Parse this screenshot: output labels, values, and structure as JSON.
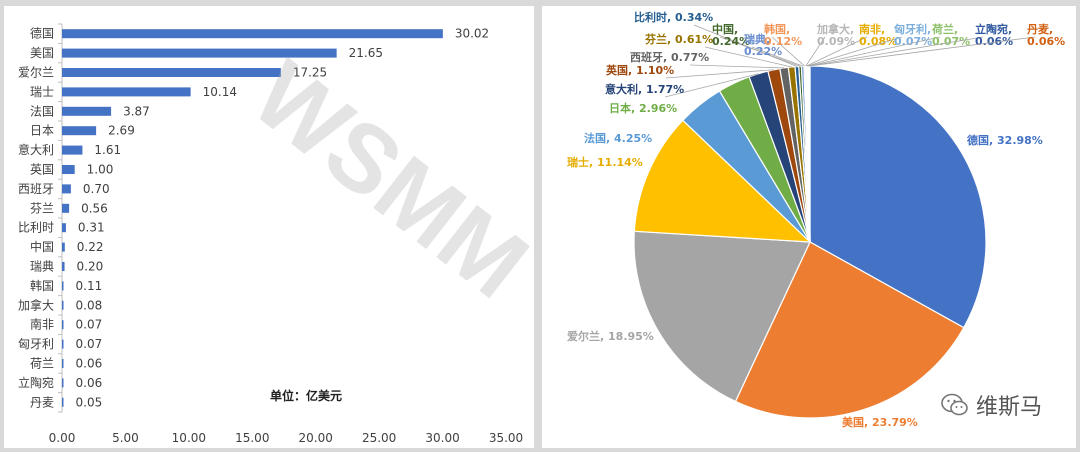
{
  "chart_data": [
    {
      "type": "bar",
      "orientation": "horizontal",
      "categories": [
        "德国",
        "美国",
        "爱尔兰",
        "瑞士",
        "法国",
        "日本",
        "意大利",
        "英国",
        "西班牙",
        "芬兰",
        "比利时",
        "中国",
        "瑞典",
        "韩国",
        "加拿大",
        "南非",
        "匈牙利",
        "荷兰",
        "立陶宛",
        "丹麦"
      ],
      "values": [
        30.02,
        21.65,
        17.25,
        10.14,
        3.87,
        2.69,
        1.61,
        1.0,
        0.7,
        0.56,
        0.31,
        0.22,
        0.2,
        0.11,
        0.08,
        0.07,
        0.07,
        0.06,
        0.06,
        0.05
      ],
      "value_labels": [
        "30.02",
        "21.65",
        "17.25",
        "10.14",
        "3.87",
        "2.69",
        "1.61",
        "1.00",
        "0.70",
        "0.56",
        "0.31",
        "0.22",
        "0.20",
        "0.11",
        "0.08",
        "0.07",
        "0.07",
        "0.06",
        "0.06",
        "0.05"
      ],
      "xlim": [
        0,
        35
      ],
      "xticks": [
        "0.00",
        "5.00",
        "10.00",
        "15.00",
        "20.00",
        "25.00",
        "30.00",
        "35.00"
      ],
      "annotation": "单位：亿美元",
      "bar_color": "#4472c4",
      "grid": false
    },
    {
      "type": "pie",
      "labels": [
        "德国",
        "美国",
        "爱尔兰",
        "瑞士",
        "法国",
        "日本",
        "意大利",
        "英国",
        "西班牙",
        "芬兰",
        "比利时",
        "中国",
        "瑞典",
        "韩国",
        "加拿大",
        "南非",
        "匈牙利",
        "荷兰",
        "立陶宛",
        "丹麦"
      ],
      "values": [
        32.98,
        23.79,
        18.95,
        11.14,
        4.25,
        2.96,
        1.77,
        1.1,
        0.77,
        0.61,
        0.34,
        0.24,
        0.22,
        0.12,
        0.09,
        0.08,
        0.07,
        0.07,
        0.06,
        0.06
      ],
      "data_labels": [
        "德国, 32.98%",
        "美国, 23.79%",
        "爱尔兰, 18.95%",
        "瑞士, 11.14%",
        "法国, 4.25%",
        "日本, 2.96%",
        "意大利, 1.77%",
        "英国, 1.10%",
        "西班牙, 0.77%",
        "芬兰, 0.61%",
        "比利时, 0.34%",
        "中国, 0.24%",
        "瑞典, 0.22%",
        "韩国, 0.12%",
        "加拿大, 0.09%",
        "南非, 0.08%",
        "匈牙利, 0.07%",
        "荷兰, 0.07%",
        "立陶宛, 0.06%",
        "丹麦, 0.06%"
      ],
      "colors": [
        "#4472c4",
        "#ed7d31",
        "#a5a5a5",
        "#ffc000",
        "#5b9bd5",
        "#70ad47",
        "#264478",
        "#9e480e",
        "#636363",
        "#997300",
        "#255e91",
        "#43682b",
        "#698ed0",
        "#f1975a",
        "#b7b7b7",
        "#ffcd33",
        "#7cafdd",
        "#8cc168",
        "#335aa1",
        "#d26012"
      ]
    }
  ],
  "watermark": "WSMM",
  "brand": {
    "name": "维斯马",
    "icon": "wechat-icon"
  }
}
